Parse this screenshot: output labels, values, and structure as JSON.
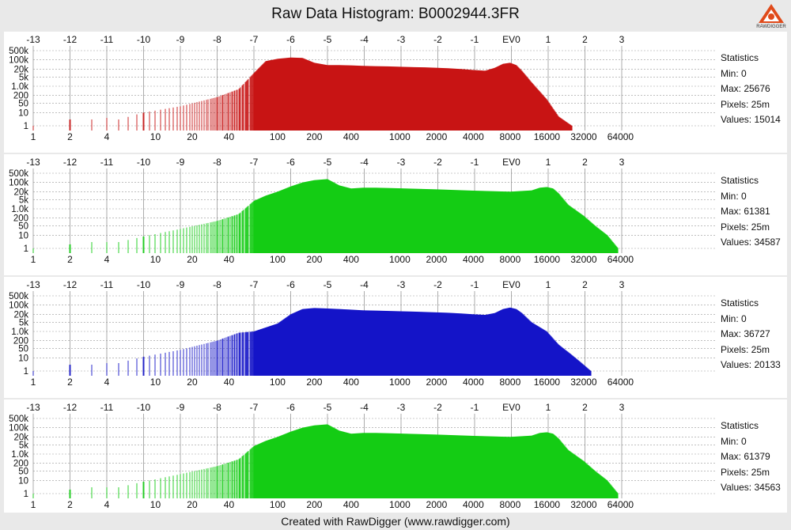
{
  "title": "Raw Data Histogram: B0002944.3FR",
  "footer": "Created with RawDigger (www.rawdigger.com)",
  "logo_text": "RAWDIGGER",
  "chart_data": [
    {
      "type": "area",
      "channel": "R",
      "color": "#c81414",
      "ev_ticks": [
        "-13",
        "-12",
        "-11",
        "-10",
        "-9",
        "-8",
        "-7",
        "-6",
        "-5",
        "-4",
        "-3",
        "-2",
        "-1",
        "EV0",
        "1",
        "2",
        "3"
      ],
      "x_ticks": [
        "1",
        "2",
        "4",
        "10",
        "20",
        "40",
        "100",
        "200",
        "400",
        "1000",
        "2000",
        "4000",
        "8000",
        "16000",
        "32000",
        "64000"
      ],
      "y_ticks": [
        "500k",
        "100k",
        "20k",
        "5k",
        "1.0k",
        "200",
        "50",
        "10",
        "1"
      ],
      "x_scale": "log2",
      "y_scale": "log",
      "x": [
        1,
        2,
        3,
        4,
        5,
        8,
        16,
        32,
        48,
        64,
        80,
        100,
        128,
        160,
        200,
        256,
        320,
        400,
        500,
        640,
        800,
        1000,
        1300,
        1600,
        2000,
        2500,
        3200,
        4000,
        5000,
        6000,
        7000,
        8000,
        9000,
        10000,
        12000,
        16000,
        20000,
        25676
      ],
      "y": [
        1,
        3,
        3,
        4,
        3,
        10,
        30,
        150,
        600,
        10000,
        80000,
        120000,
        150000,
        140000,
        60000,
        40000,
        40000,
        38000,
        35000,
        33000,
        32000,
        30000,
        28000,
        27000,
        25000,
        23000,
        20000,
        17000,
        15000,
        25000,
        50000,
        60000,
        40000,
        15000,
        2000,
        100,
        5,
        1
      ],
      "statistics": {
        "label": "Statistics",
        "min": "Min: 0",
        "max": "Max: 25676",
        "pixels": "Pixels: 25m",
        "values": "Values: 15014"
      }
    },
    {
      "type": "area",
      "channel": "G",
      "color": "#14cc14",
      "ev_ticks": [
        "-13",
        "-12",
        "-11",
        "-10",
        "-9",
        "-8",
        "-7",
        "-6",
        "-5",
        "-4",
        "-3",
        "-2",
        "-1",
        "EV0",
        "1",
        "2",
        "3"
      ],
      "x_ticks": [
        "1",
        "2",
        "4",
        "10",
        "20",
        "40",
        "100",
        "200",
        "400",
        "1000",
        "2000",
        "4000",
        "8000",
        "16000",
        "32000",
        "64000"
      ],
      "y_ticks": [
        "500k",
        "100k",
        "20k",
        "5k",
        "1.0k",
        "200",
        "50",
        "10",
        "1"
      ],
      "x_scale": "log2",
      "y_scale": "log",
      "x": [
        1,
        2,
        3,
        4,
        5,
        8,
        16,
        32,
        48,
        64,
        80,
        100,
        128,
        160,
        200,
        256,
        320,
        400,
        500,
        640,
        800,
        1000,
        2000,
        4000,
        8000,
        12000,
        14000,
        16000,
        18000,
        20000,
        24000,
        32000,
        40000,
        50000,
        61381
      ],
      "y": [
        1,
        2,
        3,
        3,
        3,
        8,
        30,
        120,
        400,
        4000,
        10000,
        20000,
        50000,
        100000,
        150000,
        180000,
        60000,
        35000,
        40000,
        40000,
        38000,
        36000,
        30000,
        24000,
        20000,
        25000,
        40000,
        45000,
        35000,
        15000,
        2000,
        300,
        50,
        10,
        1
      ],
      "statistics": {
        "label": "Statistics",
        "min": "Min: 0",
        "max": "Max: 61381",
        "pixels": "Pixels: 25m",
        "values": "Values: 34587"
      }
    },
    {
      "type": "area",
      "channel": "B",
      "color": "#1414c8",
      "ev_ticks": [
        "-13",
        "-12",
        "-11",
        "-10",
        "-9",
        "-8",
        "-7",
        "-6",
        "-5",
        "-4",
        "-3",
        "-2",
        "-1",
        "EV0",
        "1",
        "2",
        "3"
      ],
      "x_ticks": [
        "1",
        "2",
        "4",
        "10",
        "20",
        "40",
        "100",
        "200",
        "400",
        "1000",
        "2000",
        "4000",
        "8000",
        "16000",
        "32000",
        "64000"
      ],
      "y_ticks": [
        "500k",
        "100k",
        "20k",
        "5k",
        "1.0k",
        "200",
        "50",
        "10",
        "1"
      ],
      "x_scale": "log2",
      "y_scale": "log",
      "x": [
        1,
        2,
        3,
        4,
        5,
        8,
        16,
        32,
        48,
        64,
        80,
        100,
        128,
        160,
        200,
        256,
        320,
        400,
        500,
        640,
        800,
        1000,
        1300,
        1600,
        2000,
        2500,
        3200,
        4000,
        5000,
        6000,
        7000,
        8000,
        9000,
        10000,
        12000,
        16000,
        20000,
        25000,
        30000,
        36727
      ],
      "y": [
        1,
        3,
        3,
        4,
        4,
        12,
        40,
        200,
        800,
        1000,
        2000,
        4000,
        20000,
        50000,
        60000,
        55000,
        50000,
        45000,
        40000,
        38000,
        36000,
        34000,
        32000,
        30000,
        28000,
        26000,
        23000,
        20000,
        18000,
        25000,
        50000,
        65000,
        50000,
        25000,
        5000,
        1000,
        100,
        20,
        5,
        1
      ],
      "statistics": {
        "label": "Statistics",
        "min": "Min: 0",
        "max": "Max: 36727",
        "pixels": "Pixels: 25m",
        "values": "Values: 20133"
      }
    },
    {
      "type": "area",
      "channel": "G2",
      "color": "#14cc14",
      "ev_ticks": [
        "-13",
        "-12",
        "-11",
        "-10",
        "-9",
        "-8",
        "-7",
        "-6",
        "-5",
        "-4",
        "-3",
        "-2",
        "-1",
        "EV0",
        "1",
        "2",
        "3"
      ],
      "x_ticks": [
        "1",
        "2",
        "4",
        "10",
        "20",
        "40",
        "100",
        "200",
        "400",
        "1000",
        "2000",
        "4000",
        "8000",
        "16000",
        "32000",
        "64000"
      ],
      "y_ticks": [
        "500k",
        "100k",
        "20k",
        "5k",
        "1.0k",
        "200",
        "50",
        "10",
        "1"
      ],
      "x_scale": "log2",
      "y_scale": "log",
      "x": [
        1,
        2,
        3,
        4,
        5,
        8,
        16,
        32,
        48,
        64,
        80,
        100,
        128,
        160,
        200,
        256,
        320,
        400,
        500,
        640,
        800,
        1000,
        2000,
        4000,
        8000,
        12000,
        14000,
        16000,
        18000,
        20000,
        24000,
        32000,
        40000,
        50000,
        61379
      ],
      "y": [
        1,
        2,
        3,
        3,
        3,
        8,
        30,
        120,
        400,
        4000,
        10000,
        20000,
        50000,
        100000,
        150000,
        180000,
        60000,
        35000,
        40000,
        40000,
        38000,
        36000,
        30000,
        24000,
        20000,
        25000,
        40000,
        45000,
        35000,
        15000,
        2000,
        300,
        50,
        10,
        1
      ],
      "statistics": {
        "label": "Statistics",
        "min": "Min: 0",
        "max": "Max: 61379",
        "pixels": "Pixels: 25m",
        "values": "Values: 34563"
      }
    }
  ]
}
